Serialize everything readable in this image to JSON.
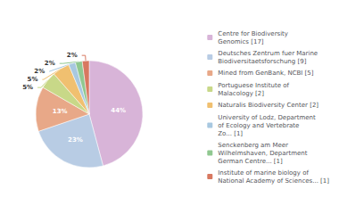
{
  "chart_data": {
    "type": "pie",
    "categories": [
      "Centre for Biodiversity\nGenomics [17]",
      "Deutsches Zentrum fuer Marine\nBiodiversitaetsforschung [9]",
      "Mined from GenBank, NCBI [5]",
      "Portuguese Institute of\nMalacology [2]",
      "Naturalis Biodiversity Center [2]",
      "University of Lodz, Department\nof Ecology and Vertebrate\nZo... [1]",
      "Senckenberg am Meer\nWilhelmshaven, Department\nGerman Centre... [1]",
      "Institute of marine biology of\nNational Academy of Sciences... [1]"
    ],
    "values": [
      44,
      23,
      13,
      5,
      5,
      2,
      2,
      2
    ],
    "value_labels": [
      "44%",
      "23%",
      "13%",
      "5%",
      "5%",
      "2%",
      "2%",
      "2%"
    ],
    "colors": [
      "#d8b4d8",
      "#b8cce4",
      "#e8a888",
      "#c8d888",
      "#f0c070",
      "#a8c8e0",
      "#90c890",
      "#d87860"
    ],
    "data_labels": true,
    "legend": "right"
  }
}
